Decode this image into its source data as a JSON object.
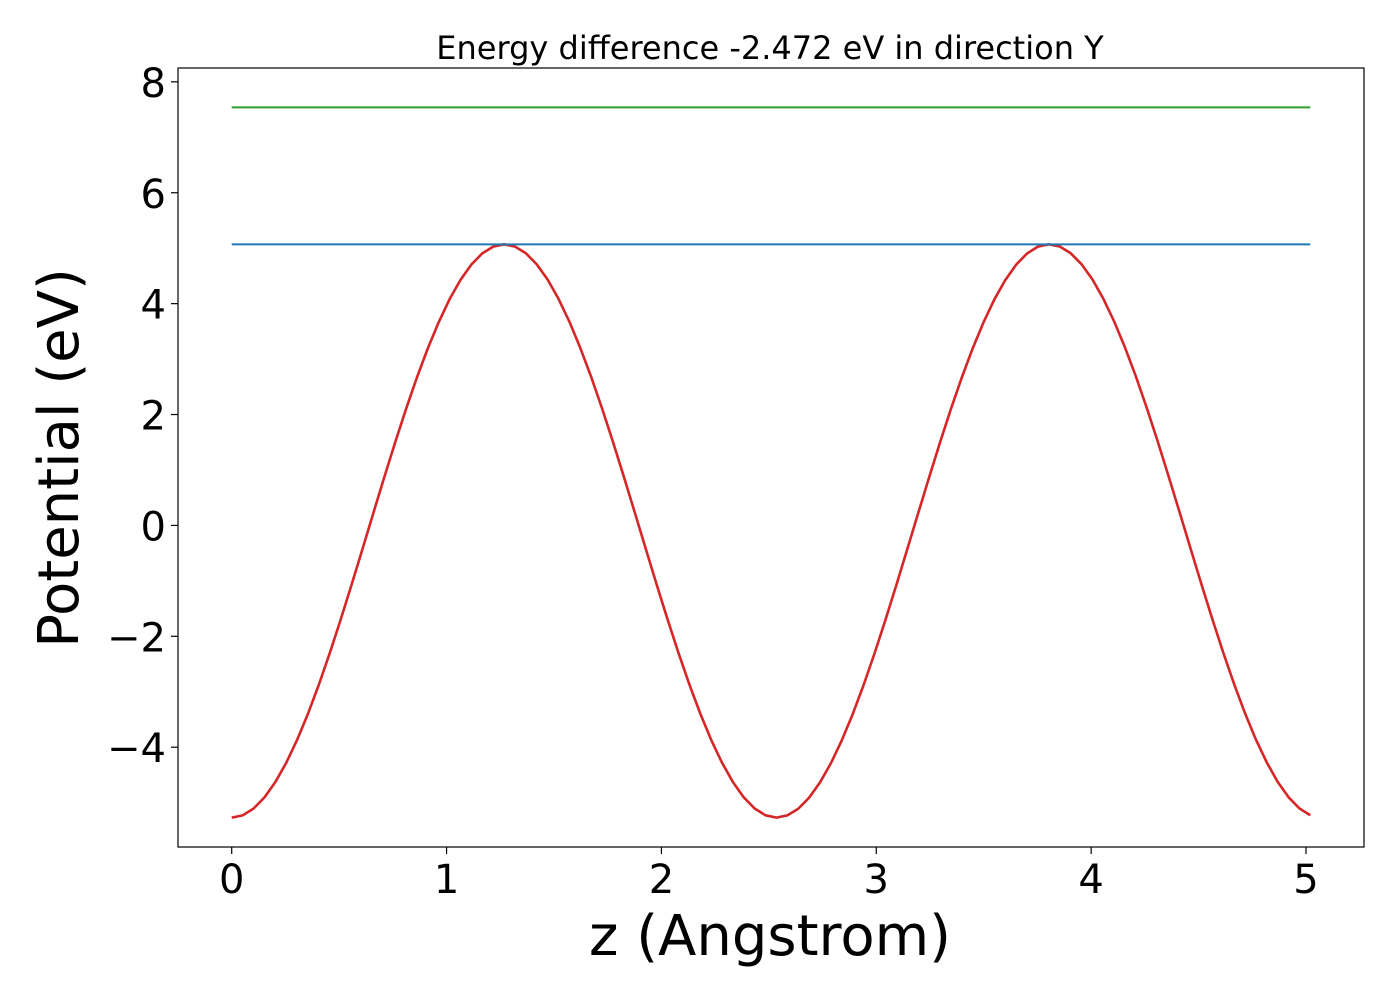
{
  "chart_data": {
    "type": "line",
    "title": "Energy difference -2.472 eV in direction Y",
    "xlabel": "z (Angstrom)",
    "ylabel": "Potential (eV)",
    "xlim": [
      -0.25,
      5.27
    ],
    "ylim": [
      -5.8,
      8.25
    ],
    "xticks": [
      0,
      1,
      2,
      3,
      4,
      5
    ],
    "xtick_labels": [
      "0",
      "1",
      "2",
      "3",
      "4",
      "5"
    ],
    "yticks": [
      -4,
      -2,
      0,
      2,
      4,
      6,
      8
    ],
    "ytick_labels": [
      "−4",
      "−2",
      "0",
      "2",
      "4",
      "6",
      "8"
    ],
    "grid": false,
    "series": [
      {
        "kind": "curve",
        "color": "#d62728",
        "x_start": 0,
        "x_end": 5.02,
        "period": 2.536,
        "mean": -0.1,
        "amplitude": 5.17,
        "x_min": 0,
        "points": 100
      },
      {
        "kind": "hline",
        "color": "#1f77b4",
        "x": [
          0,
          5.02
        ],
        "y": 5.07
      },
      {
        "kind": "hline",
        "color": "#2ca02c",
        "x": [
          0,
          5.02
        ],
        "y": 7.54
      }
    ]
  }
}
